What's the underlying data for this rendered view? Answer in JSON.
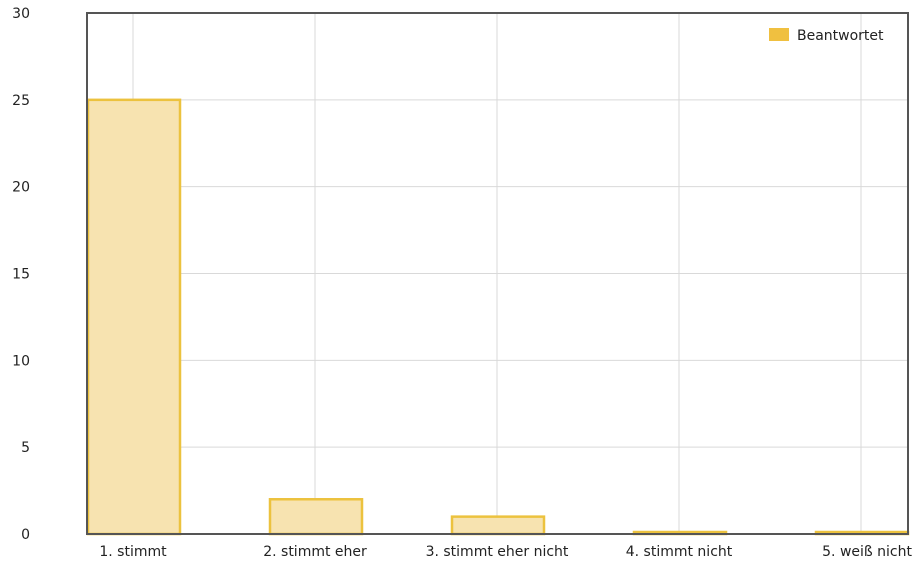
{
  "chart_data": {
    "type": "bar",
    "categories": [
      "1. stimmt",
      "2. stimmt eher",
      "3. stimmt eher nicht",
      "4. stimmt nicht",
      "5. weiß nicht"
    ],
    "series": [
      {
        "name": "Beantwortet",
        "values": [
          25,
          2,
          1,
          0,
          0
        ]
      }
    ],
    "ylim": [
      0,
      30
    ],
    "yticks": [
      0,
      5,
      10,
      15,
      20,
      25,
      30
    ],
    "grid": true,
    "legend_position": "top-right",
    "colors": {
      "bar_fill": "#f7e3b0",
      "bar_stroke": "#ecc23e",
      "legend_swatch": "#f0c040",
      "grid": "#d9d9d9",
      "axis": "#555555"
    }
  }
}
